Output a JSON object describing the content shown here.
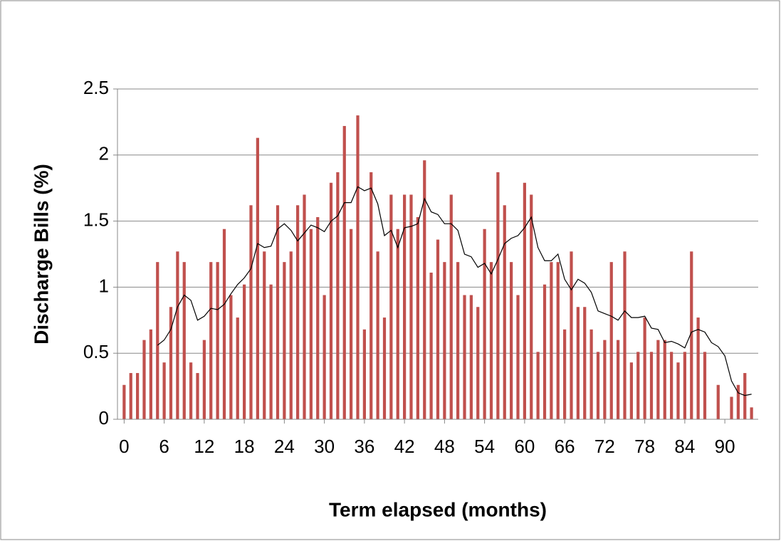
{
  "chart_data": {
    "type": "bar",
    "xlabel": "Term elapsed (months)",
    "ylabel": "Discharge Bills (%)",
    "x": [
      0,
      1,
      2,
      3,
      4,
      5,
      6,
      7,
      8,
      9,
      10,
      11,
      12,
      13,
      14,
      15,
      16,
      17,
      18,
      19,
      20,
      21,
      22,
      23,
      24,
      25,
      26,
      27,
      28,
      29,
      30,
      31,
      32,
      33,
      34,
      35,
      36,
      37,
      38,
      39,
      40,
      41,
      42,
      43,
      44,
      45,
      46,
      47,
      48,
      49,
      50,
      51,
      52,
      53,
      54,
      55,
      56,
      57,
      58,
      59,
      60,
      61,
      62,
      63,
      64,
      65,
      66,
      67,
      68,
      69,
      70,
      71,
      72,
      73,
      74,
      75,
      76,
      77,
      78,
      79,
      80,
      81,
      82,
      83,
      84,
      85,
      86,
      87,
      88,
      89,
      90,
      91,
      92,
      93,
      94
    ],
    "series": [
      {
        "type": "bar",
        "color": "#c0504d",
        "values": [
          0.26,
          0.35,
          0.35,
          0.6,
          0.68,
          1.19,
          0.43,
          0.85,
          1.27,
          1.19,
          0.43,
          0.35,
          0.6,
          1.19,
          1.19,
          1.44,
          0.94,
          0.77,
          1.02,
          1.62,
          2.13,
          1.27,
          1.02,
          1.62,
          1.19,
          1.27,
          1.62,
          1.7,
          1.44,
          1.53,
          0.94,
          1.79,
          1.87,
          2.22,
          1.44,
          2.3,
          0.68,
          1.87,
          1.27,
          0.77,
          1.7,
          1.44,
          1.7,
          1.7,
          1.53,
          1.96,
          1.11,
          1.36,
          1.19,
          1.7,
          1.19,
          0.94,
          0.94,
          0.85,
          1.44,
          1.19,
          1.87,
          1.62,
          1.19,
          0.94,
          1.79,
          1.7,
          0.51,
          1.02,
          1.19,
          1.19,
          0.68,
          1.27,
          0.85,
          0.85,
          0.68,
          0.51,
          0.6,
          1.19,
          0.6,
          1.27,
          0.43,
          0.51,
          0.77,
          0.51,
          0.6,
          0.6,
          0.51,
          0.43,
          0.51,
          1.27,
          0.77,
          0.51,
          0,
          0.26,
          0,
          0.17,
          0.26,
          0.35,
          0.09
        ]
      },
      {
        "type": "line",
        "color": "#000000",
        "values": [
          null,
          null,
          null,
          null,
          null,
          0.56,
          0.6,
          0.68,
          0.85,
          0.94,
          0.9,
          0.75,
          0.78,
          0.84,
          0.83,
          0.87,
          0.95,
          1.02,
          1.07,
          1.14,
          1.33,
          1.3,
          1.31,
          1.44,
          1.48,
          1.43,
          1.35,
          1.41,
          1.47,
          1.45,
          1.42,
          1.5,
          1.54,
          1.64,
          1.64,
          1.76,
          1.73,
          1.75,
          1.63,
          1.39,
          1.43,
          1.3,
          1.45,
          1.46,
          1.48,
          1.67,
          1.57,
          1.55,
          1.48,
          1.48,
          1.43,
          1.25,
          1.23,
          1.15,
          1.18,
          1.1,
          1.21,
          1.33,
          1.37,
          1.39,
          1.45,
          1.53,
          1.3,
          1.2,
          1.2,
          1.25,
          1.06,
          0.98,
          1.06,
          1.03,
          0.96,
          0.82,
          0.8,
          0.78,
          0.75,
          0.82,
          0.77,
          0.77,
          0.78,
          0.69,
          0.68,
          0.58,
          0.59,
          0.57,
          0.54,
          0.66,
          0.68,
          0.66,
          0.58,
          0.55,
          0.48,
          0.29,
          0.2,
          0.18,
          0.19
        ]
      }
    ],
    "xlim": [
      -1,
      95
    ],
    "xticks": [
      0,
      6,
      12,
      18,
      24,
      30,
      36,
      42,
      48,
      54,
      60,
      66,
      72,
      78,
      84,
      90
    ],
    "ylim": [
      0,
      2.5
    ],
    "yticks": [
      0,
      0.5,
      1,
      1.5,
      2,
      2.5
    ],
    "grid": true
  }
}
